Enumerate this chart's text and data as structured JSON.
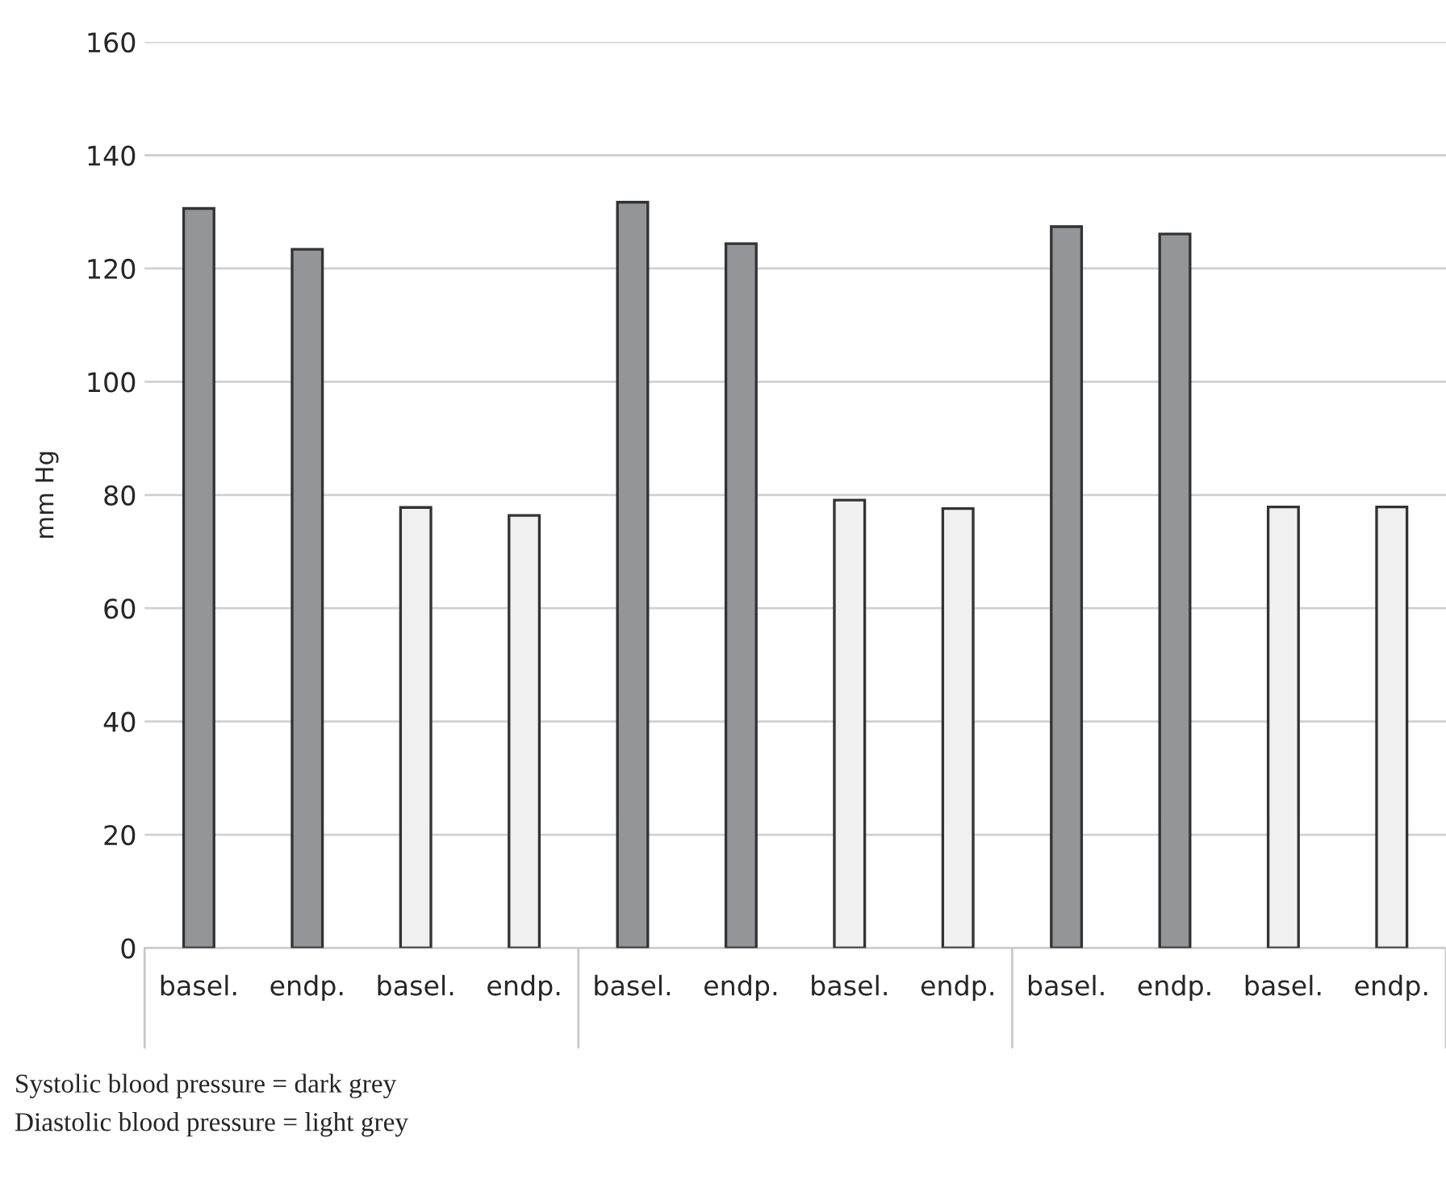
{
  "chart_data": {
    "type": "bar",
    "ylabel": "mm Hg",
    "categories": [
      "basel.",
      "endp.",
      "basel.",
      "endp.",
      "basel.",
      "endp.",
      "basel.",
      "endp.",
      "basel.",
      "endp.",
      "basel.",
      "endp."
    ],
    "values": [
      130.6,
      123.4,
      77.8,
      76.4,
      131.7,
      124.4,
      79.1,
      77.6,
      127.4,
      126.1,
      77.9,
      77.9
    ],
    "colors": [
      "#939598",
      "#939598",
      "#f0f0f0",
      "#f0f0f0",
      "#939598",
      "#939598",
      "#f0f0f0",
      "#f0f0f0",
      "#939598",
      "#939598",
      "#f0f0f0",
      "#f0f0f0"
    ],
    "ylim": [
      0,
      160
    ],
    "yticks": [
      0,
      20,
      40,
      60,
      80,
      100,
      120,
      140,
      160
    ],
    "grid": "y",
    "annotations": [
      "Systolic blood pressure = dark grey",
      "Diastolic blood pressure = light grey"
    ]
  }
}
